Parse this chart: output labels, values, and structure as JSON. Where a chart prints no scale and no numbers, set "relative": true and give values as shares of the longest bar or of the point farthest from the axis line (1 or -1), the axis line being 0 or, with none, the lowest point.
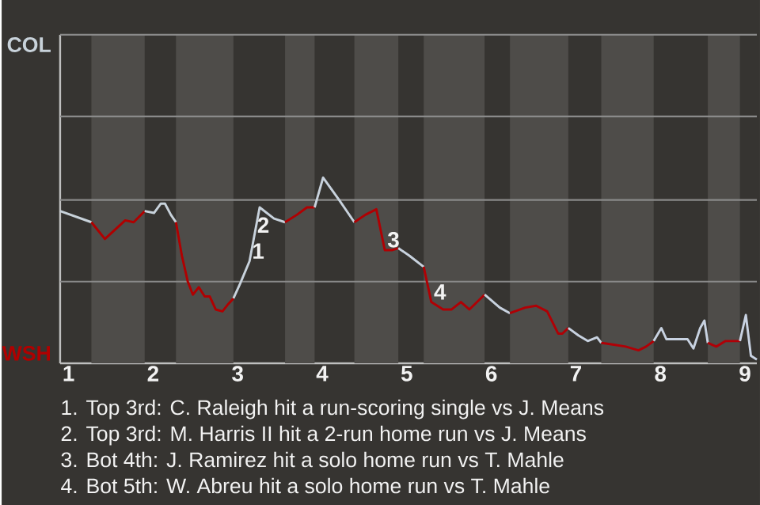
{
  "chart_data": {
    "type": "line",
    "relative": true,
    "xlim": [
      0.9,
      9.14
    ],
    "xticks": [
      {
        "value": 1,
        "label": "1"
      },
      {
        "value": 2,
        "label": "2"
      },
      {
        "value": 3,
        "label": "3"
      },
      {
        "value": 4,
        "label": "4"
      },
      {
        "value": 5,
        "label": "5"
      },
      {
        "value": 6,
        "label": "6"
      },
      {
        "value": 7,
        "label": "7"
      },
      {
        "value": 8,
        "label": "8"
      },
      {
        "value": 9,
        "label": "9"
      }
    ],
    "series": [
      {
        "name": "COL",
        "color": "#c8d2da",
        "x": [
          0.9,
          1.27
        ],
        "values": [
          0.82,
          0.76
        ]
      },
      {
        "name": "WSH",
        "color": "#b00000",
        "x": [
          1.27,
          1.43,
          1.55,
          1.67,
          1.77,
          1.9
        ],
        "values": [
          0.76,
          0.67,
          0.72,
          0.77,
          0.76,
          0.82
        ]
      },
      {
        "color": "#c8d2db",
        "x": [
          1.9,
          2.01,
          2.09,
          2.14,
          2.21,
          2.27
        ],
        "values": [
          0.82,
          0.81,
          0.86,
          0.86,
          0.8,
          0.76
        ]
      },
      {
        "color": "#b00001",
        "x": [
          2.27,
          2.34,
          2.41,
          2.47,
          2.54,
          2.61,
          2.67,
          2.74,
          2.82,
          2.89,
          2.95
        ],
        "values": [
          0.76,
          0.58,
          0.44,
          0.37,
          0.41,
          0.36,
          0.36,
          0.29,
          0.28,
          0.32,
          0.35
        ]
      },
      {
        "color": "#c8d2dc",
        "x": [
          2.95,
          3.03,
          3.14,
          3.26,
          3.43,
          3.56
        ],
        "values": [
          0.35,
          0.43,
          0.55,
          0.84,
          0.78,
          0.76
        ]
      },
      {
        "color": "#b00002",
        "x": [
          3.56,
          3.7,
          3.82,
          3.91
        ],
        "values": [
          0.76,
          0.8,
          0.84,
          0.84
        ]
      },
      {
        "color": "#c8d2dd",
        "x": [
          3.91,
          4.01,
          4.2,
          4.38
        ],
        "values": [
          0.84,
          1,
          0.88,
          0.76
        ]
      },
      {
        "color": "#b00003",
        "x": [
          4.38,
          4.51,
          4.64,
          4.74,
          4.83,
          4.9
        ],
        "values": [
          0.76,
          0.8,
          0.83,
          0.61,
          0.61,
          0.62
        ]
      },
      {
        "color": "#c8d2de",
        "x": [
          4.9,
          5.03,
          5.2
        ],
        "values": [
          0.62,
          0.58,
          0.52
        ]
      },
      {
        "color": "#b00004",
        "x": [
          5.2,
          5.29,
          5.43,
          5.53,
          5.64,
          5.74,
          5.92
        ],
        "values": [
          0.52,
          0.33,
          0.29,
          0.29,
          0.33,
          0.29,
          0.37
        ]
      },
      {
        "color": "#c8d2df",
        "x": [
          5.92,
          6.1,
          6.22
        ],
        "values": [
          0.37,
          0.3,
          0.27
        ]
      },
      {
        "color": "#b00005",
        "x": [
          6.22,
          6.4,
          6.53,
          6.66,
          6.79,
          6.84,
          6.91
        ],
        "values": [
          0.27,
          0.3,
          0.31,
          0.28,
          0.16,
          0.16,
          0.19
        ]
      },
      {
        "color": "#c8d2e0",
        "x": [
          6.91,
          7.03,
          7.14,
          7.25,
          7.3
        ],
        "values": [
          0.19,
          0.15,
          0.12,
          0.14,
          0.11
        ]
      },
      {
        "color": "#b00006",
        "x": [
          7.3,
          7.45,
          7.59,
          7.74,
          7.83,
          7.92
        ],
        "values": [
          0.11,
          0.1,
          0.09,
          0.07,
          0.09,
          0.12
        ]
      },
      {
        "color": "#c8d2e1",
        "x": [
          7.92,
          8.01,
          8.07,
          8.32,
          8.39,
          8.47,
          8.52,
          8.56
        ],
        "values": [
          0.12,
          0.19,
          0.13,
          0.13,
          0.08,
          0.19,
          0.23,
          0.11
        ]
      },
      {
        "color": "#b00007",
        "x": [
          8.56,
          8.66,
          8.77,
          8.94
        ],
        "values": [
          0.11,
          0.09,
          0.12,
          0.12
        ]
      },
      {
        "color": "#c8d2e2",
        "x": [
          8.94,
          9.01,
          9.07,
          9.14
        ],
        "values": [
          0.12,
          0.26,
          0.04,
          0.02
        ]
      }
    ],
    "ref_lines": [
      {
        "axis": "y",
        "value": 0.44,
        "color": "#8a8a8a"
      },
      {
        "axis": "y",
        "value": 0.88,
        "color": "#8a8a8a"
      },
      {
        "axis": "y",
        "value": 1.33,
        "color": "#8a8a8a"
      },
      {
        "axis": "y",
        "value": 1.77,
        "color": "#8a8a8a"
      }
    ],
    "bands": [
      {
        "axis": "x",
        "from": 1.27,
        "to": 1.9,
        "color": "#4e4c49"
      },
      {
        "axis": "x",
        "from": 2.27,
        "to": 2.95,
        "color": "#4e4c49"
      },
      {
        "axis": "x",
        "from": 3.56,
        "to": 3.91,
        "color": "#4e4c49"
      },
      {
        "axis": "x",
        "from": 4.38,
        "to": 4.9,
        "color": "#4e4c49"
      },
      {
        "axis": "x",
        "from": 5.2,
        "to": 5.92,
        "color": "#4e4c49"
      },
      {
        "axis": "x",
        "from": 6.22,
        "to": 6.91,
        "color": "#4e4c49"
      },
      {
        "axis": "x",
        "from": 7.3,
        "to": 7.92,
        "color": "#4e4c49"
      },
      {
        "axis": "x",
        "from": 8.56,
        "to": 8.94,
        "color": "#4e4c49"
      }
    ],
    "annotations": [
      {
        "text": "1",
        "x": 3.14,
        "y": 0.55
      },
      {
        "text": "2",
        "x": 3.2,
        "y": 0.69
      },
      {
        "text": "3",
        "x": 4.74,
        "y": 0.61
      },
      {
        "text": "4",
        "x": 5.29,
        "y": 0.33
      },
      "1. Top 3rd: C. Raleigh hit a run-scoring single vs J. Means",
      "2. Top 3rd: M. Harris II hit a 2-run home run vs J. Means",
      "3. Bot 4th: J. Ramirez hit a solo home run vs T. Mahle",
      "4. Bot 5th: W. Abreu hit a solo home run vs T. Mahle"
    ]
  }
}
